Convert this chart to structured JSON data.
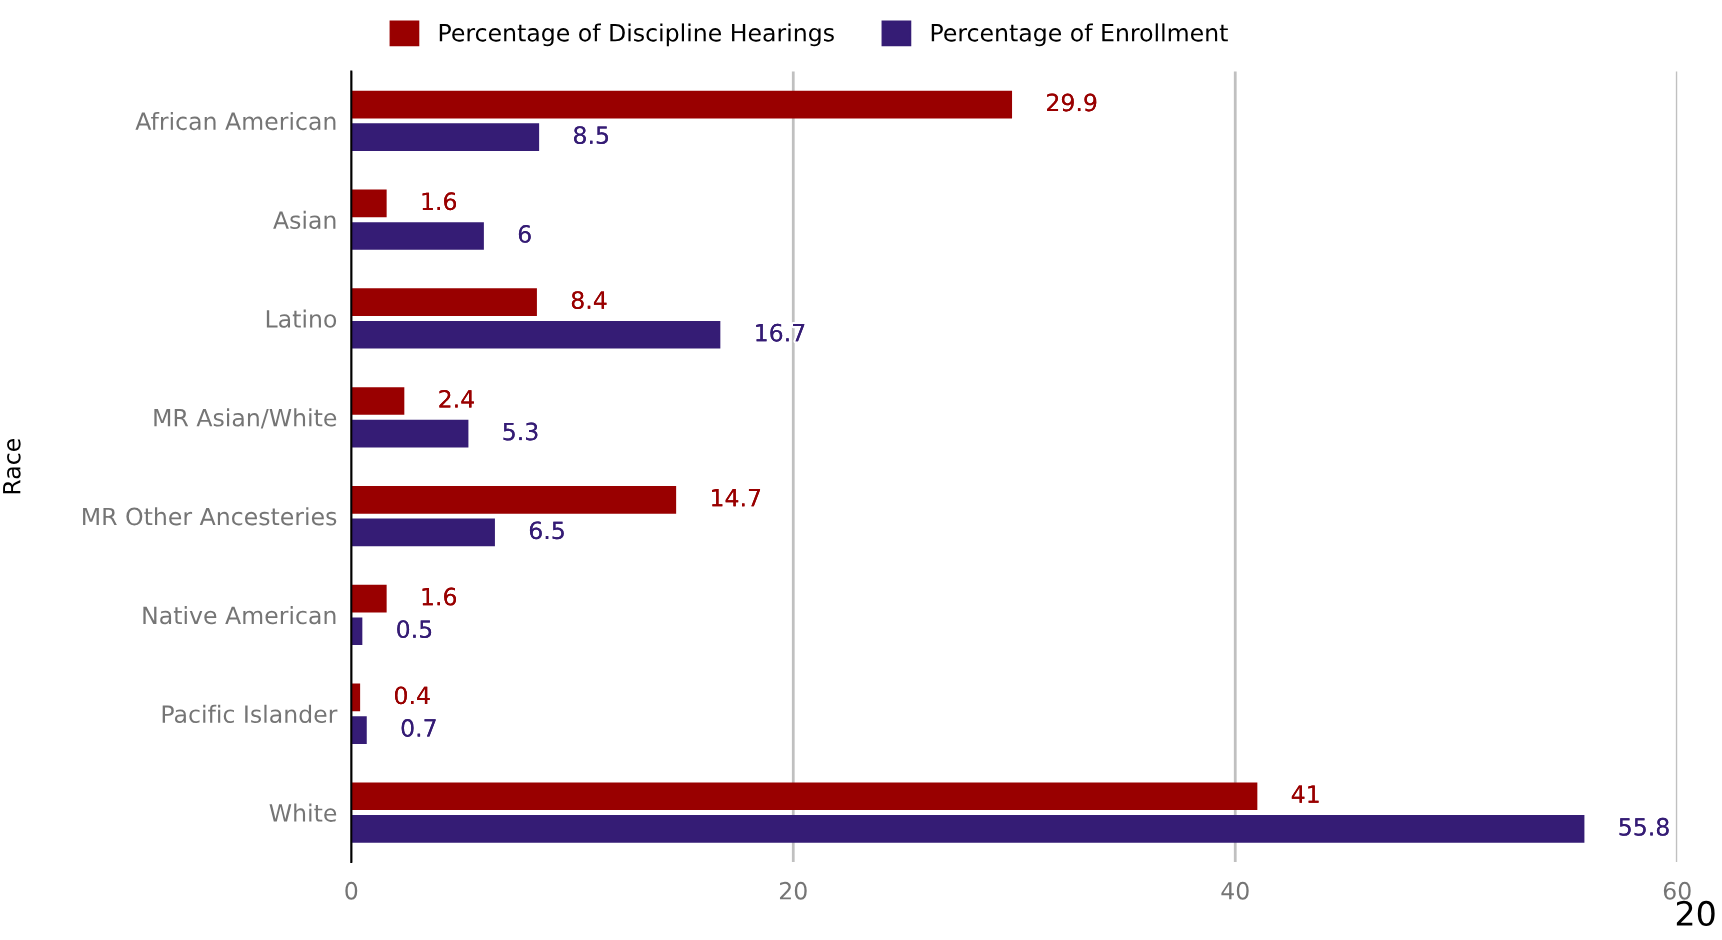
{
  "chart_data": {
    "type": "bar",
    "orientation": "horizontal",
    "ylabel": "Race",
    "categories": [
      "African American",
      "Asian",
      "Latino",
      "MR Asian/White",
      "MR Other Ancesteries",
      "Native American",
      "Pacific Islander",
      "White"
    ],
    "series": [
      {
        "name": "Percentage of Discipline Hearings",
        "color": "#990000",
        "values": [
          29.9,
          1.6,
          8.4,
          2.4,
          14.7,
          1.6,
          0.4,
          41
        ]
      },
      {
        "name": "Percentage of Enrollment",
        "color": "#351c75",
        "values": [
          8.5,
          6,
          16.7,
          5.3,
          6.5,
          0.5,
          0.7,
          55.8
        ]
      }
    ],
    "xlim": [
      0,
      60
    ],
    "xticks": [
      0,
      20,
      40,
      60
    ],
    "grid": "x",
    "legend": "top",
    "data_labels": true,
    "annotations": [
      "20"
    ]
  }
}
